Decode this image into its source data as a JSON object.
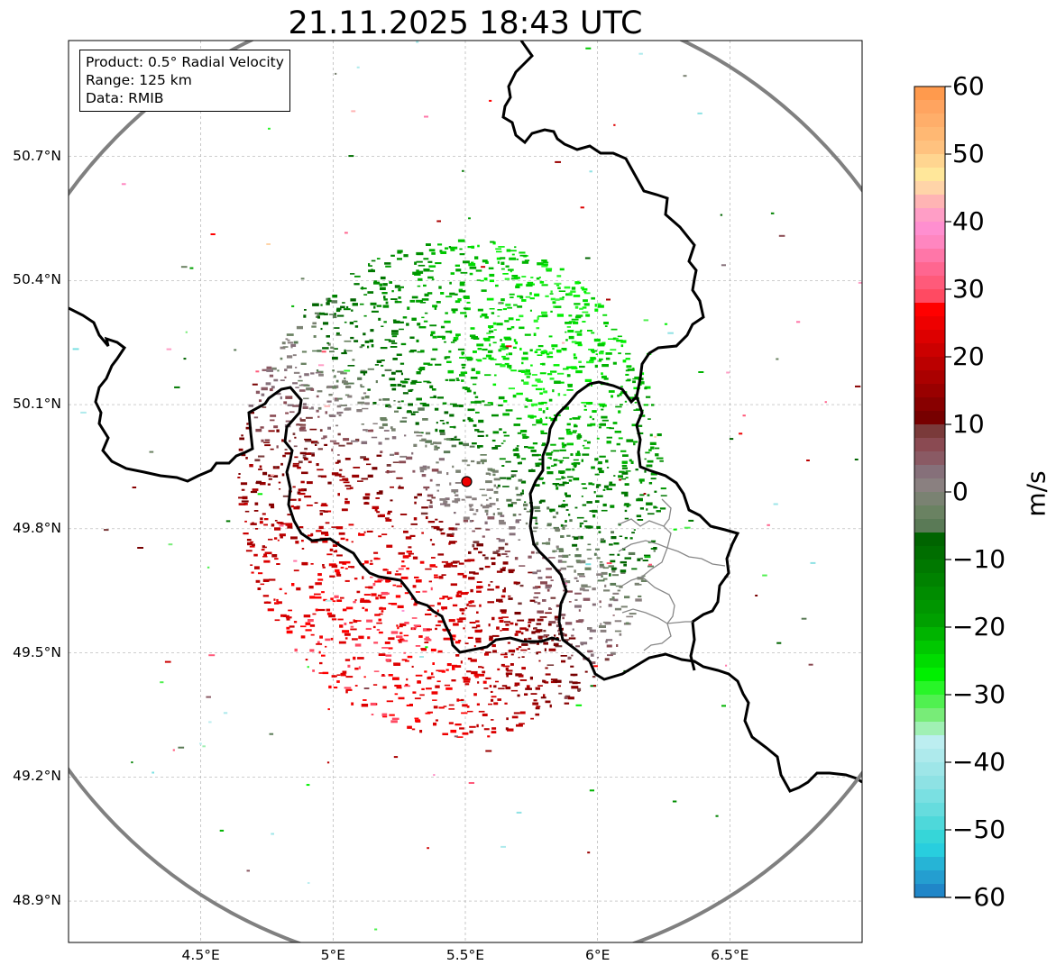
{
  "title": "21.11.2025 18:43 UTC",
  "info_box": {
    "product": "Product: 0.5° Radial Velocity",
    "range": "Range: 125 km",
    "data_source": "Data: RMIB"
  },
  "map": {
    "lon_range": [
      4.0,
      7.0
    ],
    "lat_range": [
      48.8,
      50.98
    ],
    "lon_ticks": [
      {
        "value": 4.5,
        "label": "4.5°E"
      },
      {
        "value": 5.0,
        "label": "5°E"
      },
      {
        "value": 5.5,
        "label": "5.5°E"
      },
      {
        "value": 6.0,
        "label": "6°E"
      },
      {
        "value": 6.5,
        "label": "6.5°E"
      }
    ],
    "lat_ticks": [
      {
        "value": 50.7,
        "label": "50.7°N"
      },
      {
        "value": 50.4,
        "label": "50.4°N"
      },
      {
        "value": 50.1,
        "label": "50.1°N"
      },
      {
        "value": 49.8,
        "label": "49.8°N"
      },
      {
        "value": 49.5,
        "label": "49.5°N"
      },
      {
        "value": 49.2,
        "label": "49.2°N"
      },
      {
        "value": 48.9,
        "label": "48.9°N"
      }
    ],
    "gridlines": true,
    "radar_site": {
      "lon": 5.505,
      "lat": 49.914
    },
    "range_ring_km": 125
  },
  "colorbar": {
    "label": "m/s",
    "min": -60,
    "max": 60,
    "ticks": [
      {
        "value": 60,
        "label": "60"
      },
      {
        "value": 50,
        "label": "50"
      },
      {
        "value": 40,
        "label": "40"
      },
      {
        "value": 30,
        "label": "30"
      },
      {
        "value": 20,
        "label": "20"
      },
      {
        "value": 10,
        "label": "10"
      },
      {
        "value": 0,
        "label": "0"
      },
      {
        "value": -10,
        "label": "−10"
      },
      {
        "value": -20,
        "label": "−20"
      },
      {
        "value": -30,
        "label": "−30"
      },
      {
        "value": -40,
        "label": "−40"
      },
      {
        "value": -50,
        "label": "−50"
      },
      {
        "value": -60,
        "label": "−60"
      }
    ],
    "bands": [
      {
        "from": 58,
        "to": 60,
        "color": "#ff9a4d"
      },
      {
        "from": 56,
        "to": 58,
        "color": "#ffa460"
      },
      {
        "from": 54,
        "to": 56,
        "color": "#ffae6a"
      },
      {
        "from": 52,
        "to": 54,
        "color": "#ffb873"
      },
      {
        "from": 50,
        "to": 52,
        "color": "#ffc27f"
      },
      {
        "from": 48,
        "to": 50,
        "color": "#ffd590"
      },
      {
        "from": 46,
        "to": 48,
        "color": "#ffe79a"
      },
      {
        "from": 44,
        "to": 46,
        "color": "#ffd4a8"
      },
      {
        "from": 42,
        "to": 44,
        "color": "#ffb4b4"
      },
      {
        "from": 40,
        "to": 42,
        "color": "#ff9ec6"
      },
      {
        "from": 38,
        "to": 40,
        "color": "#ff8fd0"
      },
      {
        "from": 36,
        "to": 38,
        "color": "#ff86c0"
      },
      {
        "from": 34,
        "to": 36,
        "color": "#ff76a8"
      },
      {
        "from": 32,
        "to": 34,
        "color": "#ff6690"
      },
      {
        "from": 30,
        "to": 32,
        "color": "#ff5a7a"
      },
      {
        "from": 28,
        "to": 30,
        "color": "#ff4a62"
      },
      {
        "from": 26,
        "to": 28,
        "color": "#ff0000"
      },
      {
        "from": 24,
        "to": 26,
        "color": "#ee0000"
      },
      {
        "from": 22,
        "to": 24,
        "color": "#dd0000"
      },
      {
        "from": 20,
        "to": 22,
        "color": "#cc0000"
      },
      {
        "from": 18,
        "to": 20,
        "color": "#bb0000"
      },
      {
        "from": 16,
        "to": 18,
        "color": "#aa0000"
      },
      {
        "from": 14,
        "to": 16,
        "color": "#990000"
      },
      {
        "from": 12,
        "to": 14,
        "color": "#880000"
      },
      {
        "from": 10,
        "to": 12,
        "color": "#770000"
      },
      {
        "from": 8,
        "to": 10,
        "color": "#7a3a3a"
      },
      {
        "from": 6,
        "to": 8,
        "color": "#8a4a52"
      },
      {
        "from": 4,
        "to": 6,
        "color": "#8a5a64"
      },
      {
        "from": 2,
        "to": 4,
        "color": "#86707a"
      },
      {
        "from": 0,
        "to": 2,
        "color": "#8a8080"
      },
      {
        "from": -2,
        "to": 0,
        "color": "#7a8272"
      },
      {
        "from": -4,
        "to": -2,
        "color": "#6a8262"
      },
      {
        "from": -6,
        "to": -4,
        "color": "#5a7a56"
      },
      {
        "from": -8,
        "to": -6,
        "color": "#006400"
      },
      {
        "from": -10,
        "to": -8,
        "color": "#006e00"
      },
      {
        "from": -12,
        "to": -10,
        "color": "#007800"
      },
      {
        "from": -14,
        "to": -12,
        "color": "#008200"
      },
      {
        "from": -16,
        "to": -14,
        "color": "#008c00"
      },
      {
        "from": -18,
        "to": -16,
        "color": "#009600"
      },
      {
        "from": -20,
        "to": -18,
        "color": "#00a000"
      },
      {
        "from": -22,
        "to": -20,
        "color": "#00b400"
      },
      {
        "from": -24,
        "to": -22,
        "color": "#00c800"
      },
      {
        "from": -26,
        "to": -24,
        "color": "#00dc00"
      },
      {
        "from": -28,
        "to": -26,
        "color": "#00f000"
      },
      {
        "from": -30,
        "to": -28,
        "color": "#28f528"
      },
      {
        "from": -32,
        "to": -30,
        "color": "#50f050"
      },
      {
        "from": -34,
        "to": -32,
        "color": "#78ec78"
      },
      {
        "from": -36,
        "to": -34,
        "color": "#a0f0b4"
      },
      {
        "from": -38,
        "to": -36,
        "color": "#bceef0"
      },
      {
        "from": -40,
        "to": -38,
        "color": "#aeeaec"
      },
      {
        "from": -42,
        "to": -40,
        "color": "#9ee6e8"
      },
      {
        "from": -44,
        "to": -42,
        "color": "#8ee2e4"
      },
      {
        "from": -46,
        "to": -44,
        "color": "#7ae0e2"
      },
      {
        "from": -48,
        "to": -46,
        "color": "#66dcde"
      },
      {
        "from": -50,
        "to": -48,
        "color": "#4ed8da"
      },
      {
        "from": -52,
        "to": -50,
        "color": "#36d6d8"
      },
      {
        "from": -54,
        "to": -52,
        "color": "#28cede"
      },
      {
        "from": -56,
        "to": -54,
        "color": "#26b4d6"
      },
      {
        "from": -58,
        "to": -56,
        "color": "#249ed0"
      },
      {
        "from": -60,
        "to": -58,
        "color": "#2086c8"
      }
    ]
  },
  "colors": {
    "range_ring": "#808080",
    "border": "#000000",
    "admin_border": "#888888",
    "radar_marker": "#ee0000",
    "grid": "#b0b0b0"
  }
}
